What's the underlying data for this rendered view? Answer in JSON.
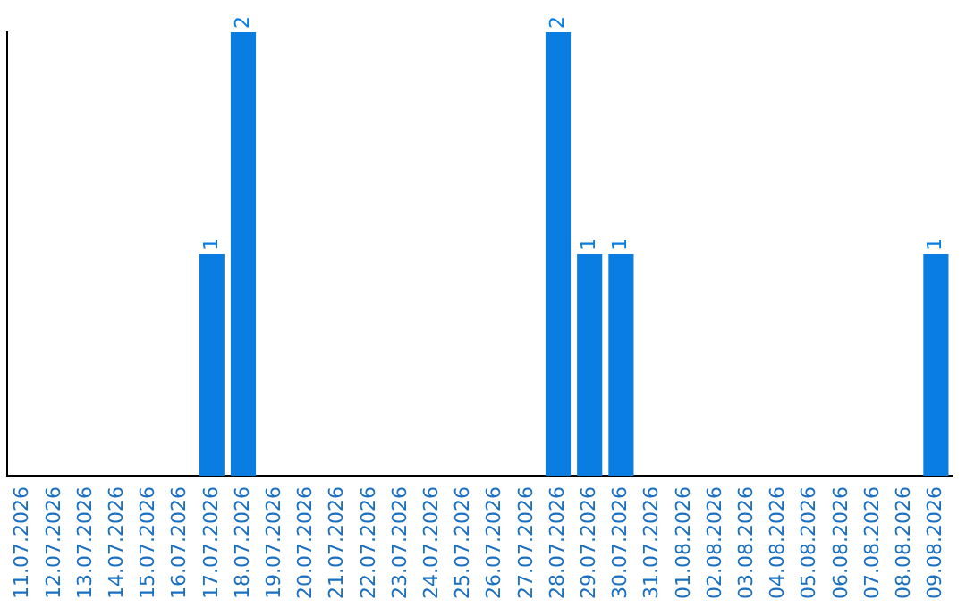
{
  "chart_data": {
    "type": "bar",
    "categories": [
      "11.07.2026",
      "12.07.2026",
      "13.07.2026",
      "14.07.2026",
      "15.07.2026",
      "16.07.2026",
      "17.07.2026",
      "18.07.2026",
      "19.07.2026",
      "20.07.2026",
      "21.07.2026",
      "22.07.2026",
      "23.07.2026",
      "24.07.2026",
      "25.07.2026",
      "26.07.2026",
      "27.07.2026",
      "28.07.2026",
      "29.07.2026",
      "30.07.2026",
      "31.07.2026",
      "01.08.2026",
      "02.08.2026",
      "03.08.2026",
      "04.08.2026",
      "05.08.2026",
      "06.08.2026",
      "07.08.2026",
      "08.08.2026",
      "09.08.2026"
    ],
    "values": [
      0,
      0,
      0,
      0,
      0,
      0,
      1,
      2,
      0,
      0,
      0,
      0,
      0,
      0,
      0,
      0,
      0,
      2,
      1,
      1,
      0,
      0,
      0,
      0,
      0,
      0,
      0,
      0,
      0,
      1
    ],
    "value_labels": [
      null,
      null,
      null,
      null,
      null,
      null,
      "1",
      "2",
      null,
      null,
      null,
      null,
      null,
      null,
      null,
      null,
      null,
      "2",
      "1",
      "1",
      null,
      null,
      null,
      null,
      null,
      null,
      null,
      null,
      null,
      "1"
    ],
    "color": "#0a7de3",
    "grid": false,
    "legend": false,
    "tick_labels": "x"
  }
}
